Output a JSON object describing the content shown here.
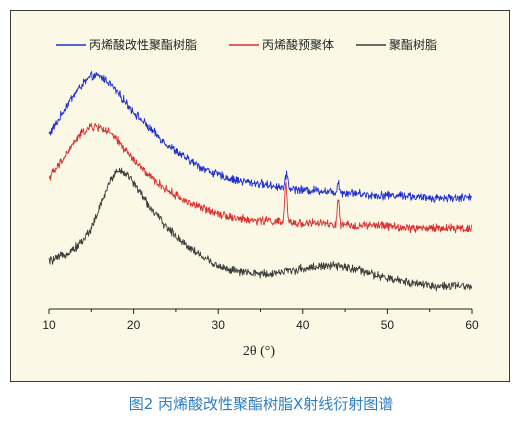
{
  "caption": "图2 丙烯酸改性聚酯树脂X射线衍射图谱",
  "chart_data": {
    "type": "line",
    "title": "",
    "xlabel": "2θ (°)",
    "ylabel": "",
    "xlim": [
      10,
      60
    ],
    "x_ticks": [
      10,
      20,
      30,
      40,
      50,
      60
    ],
    "y_ticks_shown": false,
    "grid": false,
    "legend_position": "top",
    "colors": {
      "background": "#fbf9e6",
      "frame": "#3a3a3a",
      "caption": "#2e7ec1"
    },
    "series": [
      {
        "name": "丙烯酸改性聚酯树脂",
        "color": "#1f2fd0",
        "points": [
          [
            10,
            0.65
          ],
          [
            11,
            0.7
          ],
          [
            12,
            0.76
          ],
          [
            13,
            0.81
          ],
          [
            14,
            0.85
          ],
          [
            15,
            0.88
          ],
          [
            16,
            0.88
          ],
          [
            17,
            0.86
          ],
          [
            18,
            0.82
          ],
          [
            19,
            0.78
          ],
          [
            20,
            0.74
          ],
          [
            22,
            0.67
          ],
          [
            24,
            0.61
          ],
          [
            26,
            0.56
          ],
          [
            28,
            0.52
          ],
          [
            30,
            0.49
          ],
          [
            32,
            0.47
          ],
          [
            34,
            0.46
          ],
          [
            36,
            0.45
          ],
          [
            38,
            0.44
          ],
          [
            40,
            0.43
          ],
          [
            42,
            0.43
          ],
          [
            44,
            0.42
          ],
          [
            46,
            0.42
          ],
          [
            48,
            0.41
          ],
          [
            50,
            0.41
          ],
          [
            52,
            0.41
          ],
          [
            54,
            0.4
          ],
          [
            56,
            0.4
          ],
          [
            58,
            0.4
          ],
          [
            60,
            0.4
          ]
        ],
        "peaks": [
          {
            "x": 38.1,
            "height": 0.06
          },
          {
            "x": 44.2,
            "height": 0.045
          }
        ]
      },
      {
        "name": "丙烯酸预聚体",
        "color": "#d93030",
        "points": [
          [
            10,
            0.48
          ],
          [
            11,
            0.52
          ],
          [
            12,
            0.57
          ],
          [
            13,
            0.62
          ],
          [
            14,
            0.66
          ],
          [
            15,
            0.68
          ],
          [
            16,
            0.68
          ],
          [
            17,
            0.66
          ],
          [
            18,
            0.63
          ],
          [
            19,
            0.59
          ],
          [
            20,
            0.55
          ],
          [
            22,
            0.48
          ],
          [
            24,
            0.43
          ],
          [
            26,
            0.39
          ],
          [
            28,
            0.36
          ],
          [
            30,
            0.34
          ],
          [
            32,
            0.32
          ],
          [
            34,
            0.31
          ],
          [
            36,
            0.31
          ],
          [
            38,
            0.3
          ],
          [
            40,
            0.3
          ],
          [
            42,
            0.3
          ],
          [
            44,
            0.29
          ],
          [
            46,
            0.29
          ],
          [
            48,
            0.29
          ],
          [
            50,
            0.29
          ],
          [
            52,
            0.28
          ],
          [
            54,
            0.28
          ],
          [
            56,
            0.28
          ],
          [
            58,
            0.28
          ],
          [
            60,
            0.28
          ]
        ],
        "peaks": [
          {
            "x": 38.0,
            "height": 0.16
          },
          {
            "x": 44.2,
            "height": 0.1
          }
        ]
      },
      {
        "name": "聚酯树脂",
        "color": "#3c3c3c",
        "points": [
          [
            10,
            0.15
          ],
          [
            11,
            0.16
          ],
          [
            12,
            0.18
          ],
          [
            13,
            0.2
          ],
          [
            14,
            0.23
          ],
          [
            15,
            0.28
          ],
          [
            16,
            0.36
          ],
          [
            17,
            0.45
          ],
          [
            18,
            0.51
          ],
          [
            19,
            0.5
          ],
          [
            20,
            0.46
          ],
          [
            21,
            0.41
          ],
          [
            22,
            0.36
          ],
          [
            24,
            0.28
          ],
          [
            26,
            0.22
          ],
          [
            28,
            0.17
          ],
          [
            30,
            0.13
          ],
          [
            32,
            0.11
          ],
          [
            34,
            0.1
          ],
          [
            36,
            0.1
          ],
          [
            38,
            0.11
          ],
          [
            40,
            0.12
          ],
          [
            42,
            0.13
          ],
          [
            44,
            0.13
          ],
          [
            46,
            0.12
          ],
          [
            48,
            0.1
          ],
          [
            50,
            0.08
          ],
          [
            52,
            0.07
          ],
          [
            54,
            0.06
          ],
          [
            56,
            0.05
          ],
          [
            58,
            0.05
          ],
          [
            60,
            0.05
          ]
        ],
        "peaks": []
      }
    ]
  }
}
